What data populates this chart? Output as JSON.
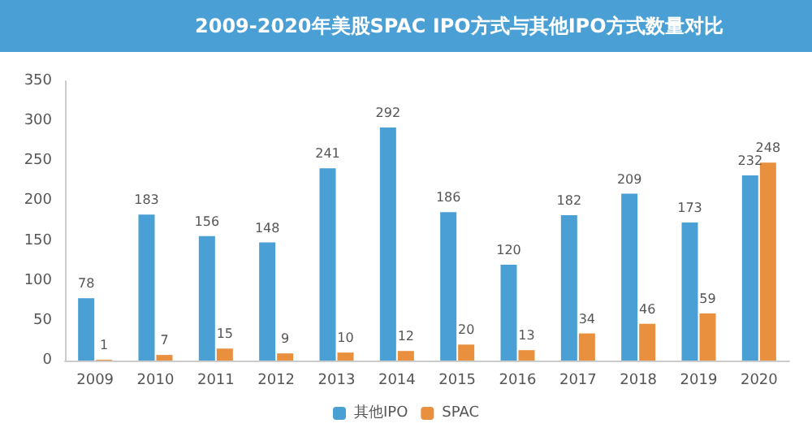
{
  "chart_data": {
    "type": "bar",
    "title": "2009-2020年美股SPAC IPO方式与其他IPO方式数量对比",
    "categories": [
      "2009",
      "2010",
      "2011",
      "2012",
      "2013",
      "2014",
      "2015",
      "2016",
      "2017",
      "2018",
      "2019",
      "2020"
    ],
    "series": [
      {
        "name": "其他IPO",
        "color": "#4a9fd4",
        "values": [
          78,
          183,
          156,
          148,
          241,
          292,
          186,
          120,
          182,
          209,
          173,
          232
        ]
      },
      {
        "name": "SPAC",
        "color": "#e8903e",
        "values": [
          1,
          7,
          15,
          9,
          10,
          12,
          20,
          13,
          34,
          46,
          59,
          248
        ]
      }
    ],
    "ylim": [
      0,
      350
    ],
    "yticks": [
      0,
      50,
      100,
      150,
      200,
      250,
      300,
      350
    ],
    "grid": false,
    "legend": "bottom",
    "data_labels": true
  }
}
